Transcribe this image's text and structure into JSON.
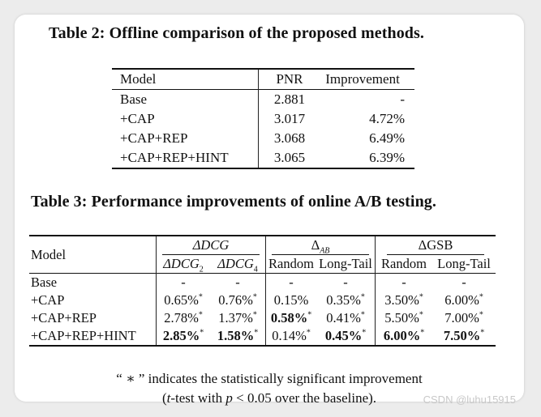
{
  "table2": {
    "caption": "Table 2: Offline comparison of the proposed methods.",
    "headers": [
      "Model",
      "PNR",
      "Improvement"
    ],
    "rows": [
      {
        "model": "Base",
        "pnr": "2.881",
        "imp": "-"
      },
      {
        "model": "+CAP",
        "pnr": "3.017",
        "imp": "4.72%"
      },
      {
        "model": "+CAP+REP",
        "pnr": "3.068",
        "imp": "6.49%"
      },
      {
        "model": "+CAP+REP+HINT",
        "pnr": "3.065",
        "imp": "6.39%"
      }
    ]
  },
  "table3": {
    "caption": "Table 3: Performance improvements of online A/B testing.",
    "model_header": "Model",
    "group_dcg": "ΔDCG",
    "group_ab_main": "Δ",
    "group_ab_sub": "AB",
    "group_gsb": "ΔGSB",
    "sub_dcg2_main": "ΔDCG",
    "sub_dcg2_sub": "2",
    "sub_dcg4_main": "ΔDCG",
    "sub_dcg4_sub": "4",
    "sub_random": "Random",
    "sub_longtail": "Long-Tail",
    "sub_random2": "Random",
    "sub_longtail2": "Long-Tail",
    "rows": [
      {
        "model": "Base",
        "v": [
          "-",
          "-",
          "-",
          "-",
          "-",
          "-"
        ],
        "star": [
          false,
          false,
          false,
          false,
          false,
          false
        ]
      },
      {
        "model": "+CAP",
        "v": [
          "0.65%",
          "0.76%",
          "0.15%",
          "0.35%",
          "3.50%",
          "6.00%"
        ],
        "star": [
          true,
          true,
          false,
          true,
          true,
          true
        ]
      },
      {
        "model": "+CAP+REP",
        "v": [
          "2.78%",
          "1.37%",
          "0.58%",
          "0.41%",
          "5.50%",
          "7.00%"
        ],
        "star": [
          true,
          true,
          true,
          true,
          true,
          true
        ]
      },
      {
        "model": "+CAP+REP+HINT",
        "v": [
          "2.85%",
          "1.58%",
          "0.14%",
          "0.45%",
          "6.00%",
          "7.50%"
        ],
        "star": [
          true,
          true,
          true,
          true,
          true,
          true
        ]
      }
    ],
    "star_symbol": "*"
  },
  "note": {
    "line1": "“ ∗ ” indicates the statistically significant improvement",
    "line2_a": "(",
    "line2_t": "t",
    "line2_b": "-test with ",
    "line2_p": "p",
    "line2_c": " < 0.05 over the baseline)."
  },
  "watermark": "CSDN @luhu15915"
}
